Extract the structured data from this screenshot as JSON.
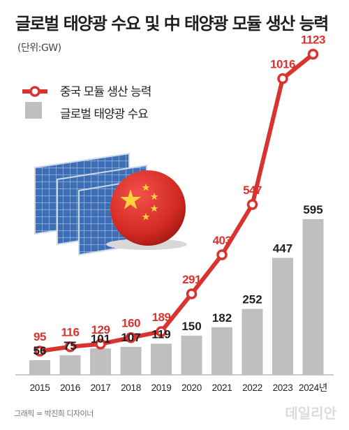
{
  "title": "글로벌 태양광 수요 및 中 태양광 모듈 생산 능력",
  "unit": "(단위:GW)",
  "credit": "그래픽 = 박진희 디자이너",
  "source": "데일리안",
  "colors": {
    "line": "#d9332f",
    "bar": "#bfbfbf",
    "bar_label": "#1f1f1f"
  },
  "chart_data": {
    "type": "bar",
    "categories": [
      "2015",
      "2016",
      "2017",
      "2018",
      "2019",
      "2020",
      "2021",
      "2022",
      "2023",
      "2024년"
    ],
    "series": [
      {
        "name": "중국 모듈 생산 능력",
        "type": "line",
        "values": [
          95,
          116,
          129,
          160,
          189,
          291,
          403,
          547,
          1016,
          1123
        ]
      },
      {
        "name": "글로벌 태양광 수요",
        "type": "bar",
        "values": [
          56,
          75,
          101,
          107,
          119,
          150,
          182,
          252,
          447,
          595
        ]
      }
    ]
  }
}
